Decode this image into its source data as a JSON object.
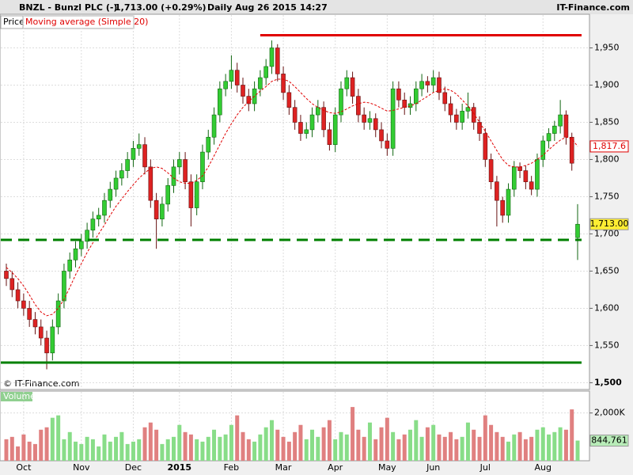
{
  "header": {
    "symbol": "BNZL - Bunzl PLC (-)",
    "quote": "1,713.00 (+0.29%)",
    "period": "Daily  Aug 26 2015 14:27",
    "site": "IT-Finance.com"
  },
  "watermark": "© IT-Finance.com",
  "chart_data": [
    {
      "type": "candlestick",
      "ylim": [
        1493,
        1975
      ],
      "yticks": [
        {
          "value": 1500,
          "label": "1,500"
        },
        {
          "value": 1550,
          "label": "1,550"
        },
        {
          "value": 1600,
          "label": "1,600"
        },
        {
          "value": 1650,
          "label": "1,650"
        },
        {
          "value": 1700,
          "label": "1,700"
        },
        {
          "value": 1750,
          "label": "1,750"
        },
        {
          "value": 1800,
          "label": "1,800"
        },
        {
          "value": 1850,
          "label": "1,850"
        },
        {
          "value": 1900,
          "label": "1,900"
        },
        {
          "value": 1950,
          "label": "1,950"
        }
      ],
      "grid": true,
      "series": [
        {
          "name": "Price",
          "up_color": "#33cc33",
          "down_color": "#dd2222",
          "open": [
            1650,
            1640,
            1625,
            1610,
            1600,
            1585,
            1575,
            1560,
            1540,
            1575,
            1610,
            1650,
            1665,
            1680,
            1690,
            1705,
            1720,
            1725,
            1745,
            1760,
            1775,
            1785,
            1800,
            1815,
            1820,
            1790,
            1745,
            1720,
            1740,
            1765,
            1790,
            1800,
            1770,
            1735,
            1770,
            1810,
            1830,
            1860,
            1895,
            1905,
            1920,
            1900,
            1885,
            1875,
            1895,
            1910,
            1925,
            1950,
            1915,
            1890,
            1870,
            1850,
            1835,
            1840,
            1860,
            1870,
            1840,
            1820,
            1860,
            1895,
            1910,
            1885,
            1860,
            1850,
            1855,
            1840,
            1825,
            1815,
            1895,
            1880,
            1870,
            1875,
            1895,
            1905,
            1900,
            1910,
            1890,
            1875,
            1860,
            1850,
            1865,
            1870,
            1850,
            1835,
            1800,
            1770,
            1745,
            1725,
            1760,
            1790,
            1785,
            1770,
            1760,
            1800,
            1825,
            1835,
            1845,
            1860,
            1830,
            1695
          ],
          "high": [
            1660,
            1650,
            1635,
            1620,
            1610,
            1595,
            1585,
            1570,
            1585,
            1620,
            1660,
            1675,
            1690,
            1700,
            1715,
            1730,
            1735,
            1755,
            1770,
            1785,
            1795,
            1810,
            1825,
            1835,
            1830,
            1800,
            1755,
            1750,
            1775,
            1800,
            1810,
            1810,
            1780,
            1780,
            1820,
            1840,
            1870,
            1905,
            1915,
            1940,
            1930,
            1910,
            1895,
            1905,
            1920,
            1935,
            1960,
            1955,
            1925,
            1900,
            1880,
            1860,
            1850,
            1870,
            1880,
            1878,
            1850,
            1870,
            1905,
            1920,
            1918,
            1895,
            1870,
            1865,
            1862,
            1850,
            1835,
            1905,
            1905,
            1890,
            1885,
            1905,
            1915,
            1912,
            1920,
            1918,
            1898,
            1885,
            1868,
            1875,
            1890,
            1876,
            1858,
            1842,
            1808,
            1778,
            1750,
            1768,
            1798,
            1796,
            1792,
            1778,
            1808,
            1832,
            1842,
            1852,
            1880,
            1866,
            1836,
            1740
          ],
          "low": [
            1630,
            1615,
            1600,
            1590,
            1575,
            1565,
            1550,
            1518,
            1530,
            1565,
            1600,
            1640,
            1655,
            1670,
            1680,
            1695,
            1710,
            1715,
            1735,
            1750,
            1765,
            1775,
            1790,
            1805,
            1780,
            1735,
            1680,
            1710,
            1730,
            1755,
            1780,
            1760,
            1710,
            1725,
            1760,
            1800,
            1820,
            1850,
            1885,
            1895,
            1890,
            1875,
            1865,
            1865,
            1885,
            1900,
            1915,
            1905,
            1880,
            1860,
            1840,
            1825,
            1828,
            1830,
            1850,
            1830,
            1812,
            1810,
            1850,
            1885,
            1875,
            1850,
            1840,
            1840,
            1830,
            1815,
            1805,
            1805,
            1870,
            1860,
            1860,
            1865,
            1885,
            1890,
            1890,
            1880,
            1865,
            1850,
            1840,
            1840,
            1855,
            1840,
            1825,
            1790,
            1760,
            1710,
            1715,
            1715,
            1750,
            1775,
            1760,
            1752,
            1750,
            1790,
            1815,
            1825,
            1835,
            1820,
            1785,
            1665
          ],
          "close": [
            1640,
            1625,
            1610,
            1600,
            1585,
            1575,
            1560,
            1540,
            1575,
            1610,
            1650,
            1665,
            1680,
            1690,
            1705,
            1720,
            1725,
            1745,
            1760,
            1775,
            1785,
            1800,
            1815,
            1820,
            1790,
            1745,
            1720,
            1740,
            1765,
            1790,
            1800,
            1770,
            1735,
            1770,
            1810,
            1830,
            1860,
            1895,
            1905,
            1920,
            1900,
            1885,
            1875,
            1895,
            1910,
            1925,
            1950,
            1915,
            1890,
            1870,
            1850,
            1835,
            1840,
            1860,
            1870,
            1840,
            1820,
            1860,
            1895,
            1910,
            1885,
            1860,
            1850,
            1855,
            1840,
            1825,
            1815,
            1895,
            1880,
            1870,
            1875,
            1895,
            1905,
            1900,
            1910,
            1890,
            1875,
            1860,
            1850,
            1865,
            1870,
            1850,
            1835,
            1800,
            1770,
            1745,
            1725,
            1760,
            1790,
            1785,
            1770,
            1760,
            1800,
            1825,
            1835,
            1845,
            1860,
            1830,
            1795,
            1713
          ],
          "last_label": "1,713.00"
        },
        {
          "name": "Moving average (Simple 20)",
          "color": "#e00000",
          "values": [
            1655,
            1648,
            1640,
            1630,
            1618,
            1605,
            1595,
            1590,
            1592,
            1600,
            1612,
            1628,
            1645,
            1660,
            1675,
            1688,
            1700,
            1712,
            1725,
            1737,
            1747,
            1757,
            1766,
            1775,
            1782,
            1788,
            1790,
            1788,
            1782,
            1775,
            1770,
            1768,
            1768,
            1772,
            1778,
            1790,
            1805,
            1820,
            1835,
            1848,
            1860,
            1870,
            1878,
            1885,
            1892,
            1898,
            1905,
            1908,
            1908,
            1905,
            1898,
            1890,
            1882,
            1875,
            1870,
            1866,
            1863,
            1862,
            1864,
            1868,
            1872,
            1875,
            1877,
            1876,
            1873,
            1869,
            1865,
            1866,
            1868,
            1870,
            1872,
            1875,
            1880,
            1885,
            1890,
            1893,
            1895,
            1893,
            1888,
            1880,
            1872,
            1862,
            1850,
            1838,
            1825,
            1812,
            1800,
            1792,
            1790,
            1790,
            1792,
            1795,
            1800,
            1806,
            1813,
            1820,
            1826,
            1830,
            1828,
            1817.6
          ],
          "last_label": "1,817.6"
        }
      ],
      "levels": [
        {
          "value": 1967,
          "color": "#e00000",
          "dashed": false,
          "from_index": 44
        },
        {
          "value": 1692,
          "color": "#008000",
          "dashed": true
        },
        {
          "value": 1527,
          "color": "#008000",
          "dashed": false
        }
      ]
    },
    {
      "type": "bar",
      "title": "Volume",
      "categories": [
        null,
        null,
        null,
        "Oct",
        null,
        null,
        null,
        null,
        null,
        null,
        null,
        null,
        null,
        "Nov",
        null,
        null,
        null,
        null,
        null,
        null,
        null,
        null,
        "Dec",
        null,
        null,
        null,
        null,
        null,
        null,
        null,
        "2015",
        null,
        null,
        null,
        null,
        null,
        null,
        null,
        null,
        "Feb",
        null,
        null,
        null,
        null,
        null,
        null,
        null,
        null,
        "Mar",
        null,
        null,
        null,
        null,
        null,
        null,
        null,
        null,
        "Apr",
        null,
        null,
        null,
        null,
        null,
        null,
        null,
        null,
        "May",
        null,
        null,
        null,
        null,
        null,
        null,
        null,
        "Jun",
        null,
        null,
        null,
        null,
        null,
        null,
        null,
        null,
        "Jul",
        null,
        null,
        null,
        null,
        null,
        null,
        null,
        null,
        null,
        "Aug",
        null,
        null,
        null,
        null,
        null,
        null
      ],
      "values": [
        900000,
        1000000,
        600000,
        1100000,
        800000,
        700000,
        1300000,
        1400000,
        1800000,
        1900000,
        900000,
        1200000,
        800000,
        700000,
        1000000,
        900000,
        600000,
        1100000,
        800000,
        1000000,
        1200000,
        700000,
        800000,
        900000,
        1400000,
        1600000,
        1300000,
        700000,
        900000,
        1000000,
        1500000,
        1200000,
        1100000,
        900000,
        800000,
        1000000,
        1300000,
        1000000,
        1100000,
        1500000,
        1900000,
        1200000,
        900000,
        800000,
        1100000,
        1400000,
        1700000,
        1300000,
        1000000,
        800000,
        1200000,
        1500000,
        900000,
        1300000,
        1000000,
        1400000,
        1700000,
        900000,
        1200000,
        1100000,
        2250000,
        1300000,
        1000000,
        1600000,
        900000,
        1400000,
        1800000,
        1200000,
        900000,
        1100000,
        1300000,
        1700000,
        1000000,
        1400000,
        1500000,
        1100000,
        1000000,
        1200000,
        900000,
        1000000,
        1600000,
        1300000,
        1000000,
        1900000,
        1500000,
        1200000,
        1000000,
        800000,
        1100000,
        1200000,
        900000,
        1000000,
        1300000,
        1400000,
        1100000,
        1200000,
        1400000,
        1300000,
        2150000,
        844761
      ],
      "last_label": "844,761",
      "ylim": [
        0,
        2950000
      ],
      "yticks": [
        {
          "value": 2000000,
          "label": "2,000K"
        }
      ],
      "grid": true
    }
  ]
}
